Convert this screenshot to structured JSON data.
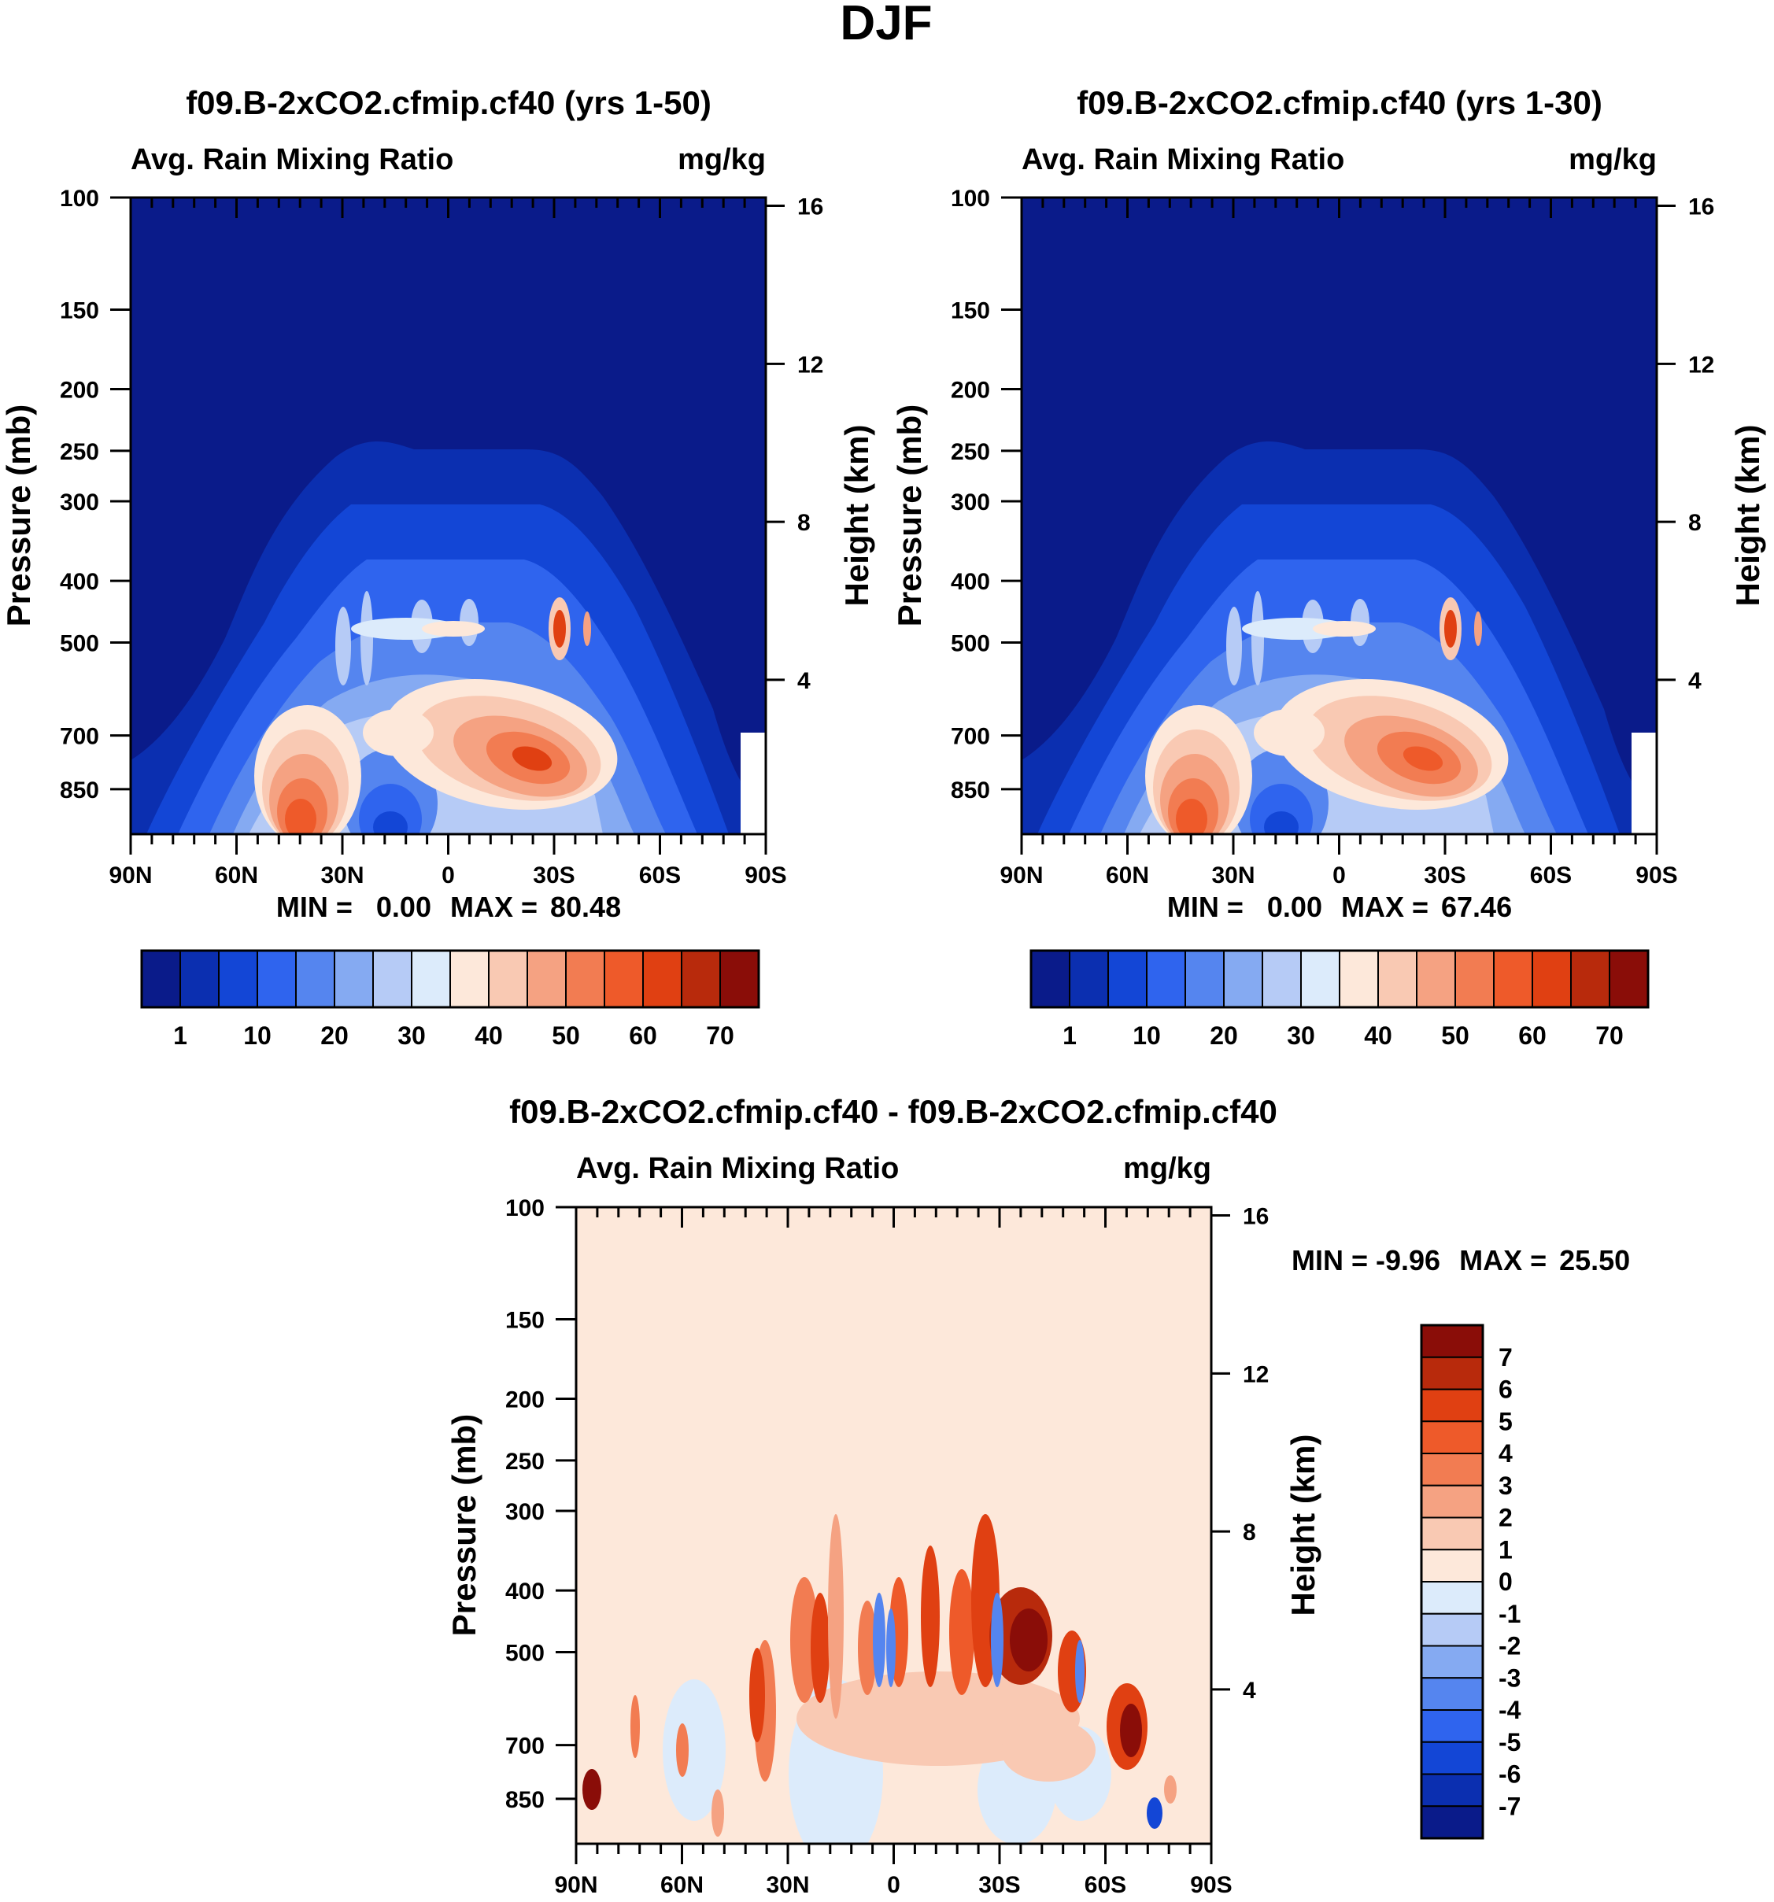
{
  "page_title": "DJF",
  "colors": {
    "cbar_abs": [
      "#0a1b8a",
      "#0b2fb0",
      "#1346d6",
      "#2f64ee",
      "#5585ef",
      "#85aaf2",
      "#b6cbf6",
      "#dcebfb",
      "#fde8da",
      "#f9c9b3",
      "#f5a282",
      "#f27c52",
      "#ee5a2a",
      "#e04012",
      "#b82a0c",
      "#8a0d08"
    ],
    "cbar_diff": [
      "#8a0d08",
      "#b82a0c",
      "#e04012",
      "#ee5a2a",
      "#f27c52",
      "#f5a282",
      "#f9c9b3",
      "#fde8da",
      "#dcebfb",
      "#b6cbf6",
      "#85aaf2",
      "#5585ef",
      "#2f64ee",
      "#1346d6",
      "#0b2fb0",
      "#0a1b8a"
    ]
  },
  "chart_data": [
    {
      "id": "panel-1",
      "type": "heatmap",
      "title": "f09.B-2xCO2.cfmip.cf40 (yrs 1-50)",
      "left_subtitle": "Avg. Rain Mixing Ratio",
      "right_subtitle": "mg/kg",
      "ylabel": "Pressure (mb)",
      "y2label": "Height (km)",
      "x_ticks": [
        "90N",
        "60N",
        "30N",
        "0",
        "30S",
        "60S",
        "90S"
      ],
      "p_ticks": [
        100,
        150,
        200,
        250,
        300,
        400,
        500,
        700,
        850
      ],
      "h_ticks": [
        16,
        12,
        8,
        4
      ],
      "stats": {
        "min_label": "MIN =",
        "min": "0.00",
        "max_label": "MAX =",
        "max": "80.48"
      },
      "colorbar_labels": [
        "1",
        "10",
        "20",
        "30",
        "40",
        "50",
        "60",
        "70"
      ]
    },
    {
      "id": "panel-2",
      "type": "heatmap",
      "title": "f09.B-2xCO2.cfmip.cf40 (yrs 1-30)",
      "left_subtitle": "Avg. Rain Mixing Ratio",
      "right_subtitle": "mg/kg",
      "ylabel": "Pressure (mb)",
      "y2label": "Height (km)",
      "x_ticks": [
        "90N",
        "60N",
        "30N",
        "0",
        "30S",
        "60S",
        "90S"
      ],
      "p_ticks": [
        100,
        150,
        200,
        250,
        300,
        400,
        500,
        700,
        850
      ],
      "h_ticks": [
        16,
        12,
        8,
        4
      ],
      "stats": {
        "min_label": "MIN =",
        "min": "0.00",
        "max_label": "MAX =",
        "max": "67.46"
      },
      "colorbar_labels": [
        "1",
        "10",
        "20",
        "30",
        "40",
        "50",
        "60",
        "70"
      ]
    },
    {
      "id": "panel-diff",
      "type": "heatmap",
      "title": "f09.B-2xCO2.cfmip.cf40 - f09.B-2xCO2.cfmip.cf40",
      "left_subtitle": "Avg. Rain Mixing Ratio",
      "right_subtitle": "mg/kg",
      "ylabel": "Pressure (mb)",
      "y2label": "Height (km)",
      "x_ticks": [
        "90N",
        "60N",
        "30N",
        "0",
        "30S",
        "60S",
        "90S"
      ],
      "p_ticks": [
        100,
        150,
        200,
        250,
        300,
        400,
        500,
        700,
        850
      ],
      "h_ticks": [
        16,
        12,
        8,
        4
      ],
      "stats": {
        "min_label": "MIN =",
        "min": "-9.96",
        "max_label": "MAX =",
        "max": "25.50"
      },
      "colorbar_labels": [
        "7",
        "6",
        "5",
        "4",
        "3",
        "2",
        "1",
        "0",
        "-1",
        "-2",
        "-3",
        "-4",
        "-5",
        "-6",
        "-7"
      ]
    }
  ]
}
